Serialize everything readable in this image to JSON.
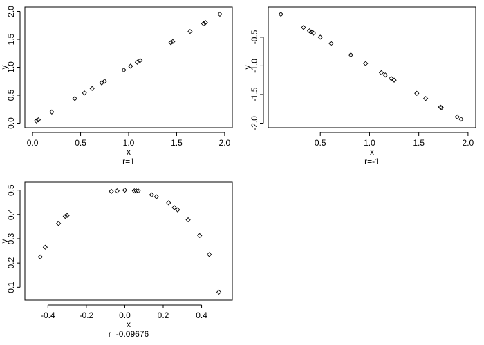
{
  "chart_data": [
    {
      "type": "scatter",
      "xlabel": "x",
      "ylabel": "y",
      "subtitle": "r=1",
      "xlim": [
        0,
        2.0
      ],
      "ylim": [
        0,
        2.0
      ],
      "xticks": [
        0.0,
        0.5,
        1.0,
        1.5,
        2.0
      ],
      "xtick_labels": [
        "0.0",
        "0.5",
        "1.0",
        "1.5",
        "2.0"
      ],
      "yticks": [
        0.0,
        0.5,
        1.0,
        1.5,
        2.0
      ],
      "ytick_labels": [
        "0.0",
        "0.5",
        "1.0",
        "1.5",
        "2.0"
      ],
      "y_tick_labels_rotated": true,
      "points": [
        {
          "x": 0.04,
          "y": 0.04
        },
        {
          "x": 0.06,
          "y": 0.06
        },
        {
          "x": 0.2,
          "y": 0.2
        },
        {
          "x": 0.44,
          "y": 0.44
        },
        {
          "x": 0.54,
          "y": 0.54
        },
        {
          "x": 0.62,
          "y": 0.62
        },
        {
          "x": 0.72,
          "y": 0.72
        },
        {
          "x": 0.75,
          "y": 0.75
        },
        {
          "x": 0.95,
          "y": 0.95
        },
        {
          "x": 1.02,
          "y": 1.02
        },
        {
          "x": 1.09,
          "y": 1.09
        },
        {
          "x": 1.12,
          "y": 1.12
        },
        {
          "x": 1.44,
          "y": 1.44
        },
        {
          "x": 1.46,
          "y": 1.46
        },
        {
          "x": 1.64,
          "y": 1.64
        },
        {
          "x": 1.78,
          "y": 1.78
        },
        {
          "x": 1.8,
          "y": 1.8
        },
        {
          "x": 1.95,
          "y": 1.95
        }
      ]
    },
    {
      "type": "scatter",
      "xlabel": "x",
      "ylabel": "y",
      "subtitle": "r=-1",
      "xlim": [
        0.05,
        2.0
      ],
      "ylim": [
        -2.0,
        -0.05
      ],
      "xticks": [
        0.5,
        1.0,
        1.5,
        2.0
      ],
      "xtick_labels": [
        "0.5",
        "1.0",
        "1.5",
        "2.0"
      ],
      "yticks": [
        -2.0,
        -1.5,
        -1.0,
        -0.5
      ],
      "ytick_labels": [
        "-2.0",
        "-1.5",
        "-1.0",
        "-0.5"
      ],
      "y_tick_labels_rotated": true,
      "points": [
        {
          "x": 0.1,
          "y": -0.1
        },
        {
          "x": 0.33,
          "y": -0.33
        },
        {
          "x": 0.39,
          "y": -0.39
        },
        {
          "x": 0.41,
          "y": -0.41
        },
        {
          "x": 0.43,
          "y": -0.43
        },
        {
          "x": 0.5,
          "y": -0.5
        },
        {
          "x": 0.61,
          "y": -0.61
        },
        {
          "x": 0.81,
          "y": -0.81
        },
        {
          "x": 0.96,
          "y": -0.96
        },
        {
          "x": 1.12,
          "y": -1.12
        },
        {
          "x": 1.16,
          "y": -1.16
        },
        {
          "x": 1.22,
          "y": -1.22
        },
        {
          "x": 1.25,
          "y": -1.25
        },
        {
          "x": 1.48,
          "y": -1.48
        },
        {
          "x": 1.57,
          "y": -1.57
        },
        {
          "x": 1.72,
          "y": -1.72
        },
        {
          "x": 1.73,
          "y": -1.73
        },
        {
          "x": 1.89,
          "y": -1.89
        },
        {
          "x": 1.93,
          "y": -1.93
        }
      ]
    },
    {
      "type": "scatter",
      "xlabel": "x",
      "ylabel": "y",
      "subtitle": "r=-0.09676",
      "xlim": [
        -0.48,
        0.52
      ],
      "ylim": [
        0.065,
        0.515
      ],
      "xticks": [
        -0.4,
        -0.2,
        0.0,
        0.2,
        0.4
      ],
      "xtick_labels": [
        "-0.4",
        "-0.2",
        "0.0",
        "0.2",
        "0.4"
      ],
      "yticks": [
        0.1,
        0.2,
        0.3,
        0.4,
        0.5
      ],
      "ytick_labels": [
        "0.1",
        "0.2",
        "0.3",
        "0.4",
        "0.5"
      ],
      "y_tick_labels_rotated": true,
      "points": [
        {
          "x": -0.44,
          "y": 0.225
        },
        {
          "x": -0.414,
          "y": 0.265
        },
        {
          "x": -0.345,
          "y": 0.363
        },
        {
          "x": -0.31,
          "y": 0.392
        },
        {
          "x": -0.3,
          "y": 0.396
        },
        {
          "x": -0.07,
          "y": 0.495
        },
        {
          "x": -0.04,
          "y": 0.497
        },
        {
          "x": 0.0,
          "y": 0.5
        },
        {
          "x": 0.05,
          "y": 0.497
        },
        {
          "x": 0.06,
          "y": 0.497
        },
        {
          "x": 0.07,
          "y": 0.497
        },
        {
          "x": 0.14,
          "y": 0.481
        },
        {
          "x": 0.165,
          "y": 0.473
        },
        {
          "x": 0.228,
          "y": 0.448
        },
        {
          "x": 0.258,
          "y": 0.428
        },
        {
          "x": 0.275,
          "y": 0.419
        },
        {
          "x": 0.33,
          "y": 0.378
        },
        {
          "x": 0.39,
          "y": 0.313
        },
        {
          "x": 0.44,
          "y": 0.235
        },
        {
          "x": 0.49,
          "y": 0.08
        }
      ]
    }
  ]
}
